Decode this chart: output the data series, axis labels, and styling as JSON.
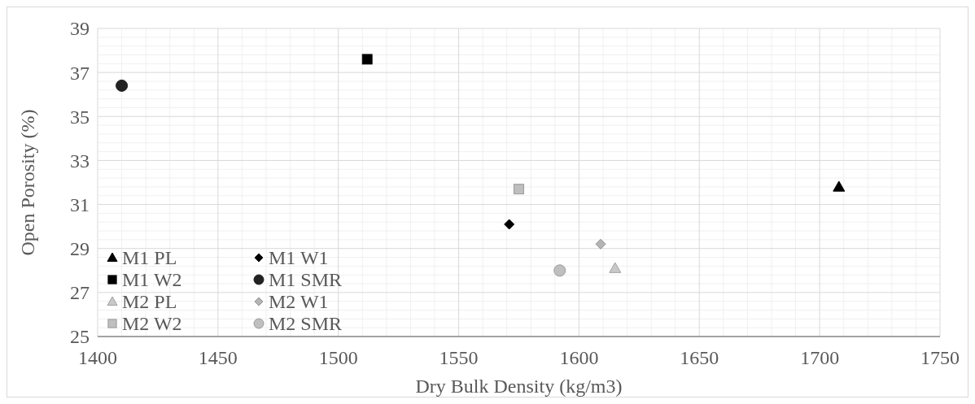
{
  "chart_data": {
    "type": "scatter",
    "xlabel": "Dry Bulk Density (kg/m3)",
    "ylabel": "Open Porosity (%)",
    "xlim": [
      1400,
      1750
    ],
    "xticks": [
      1400,
      1450,
      1500,
      1550,
      1600,
      1650,
      1700,
      1750
    ],
    "ylim": [
      25,
      39
    ],
    "yticks": [
      25,
      27,
      29,
      31,
      33,
      35,
      37,
      39
    ],
    "grid": true,
    "legend": "bottom left",
    "series": [
      {
        "name": "M1 PL",
        "color": "#000000",
        "marker": "triangle",
        "x": [
          1708
        ],
        "values": [
          31.8
        ]
      },
      {
        "name": "M1 W1",
        "color": "#000000",
        "marker": "diamond",
        "x": [
          1571
        ],
        "values": [
          30.1
        ]
      },
      {
        "name": "M1 W2",
        "color": "#000000",
        "marker": "square",
        "x": [
          1512
        ],
        "values": [
          37.6
        ]
      },
      {
        "name": "M1 SMR",
        "color": "#222222",
        "marker": "circle",
        "x": [
          1410
        ],
        "values": [
          36.4
        ]
      },
      {
        "name": "M2 PL",
        "color": "#c8c8c8",
        "marker": "triangle",
        "x": [
          1615
        ],
        "values": [
          28.1
        ]
      },
      {
        "name": "M2 W1",
        "color": "#b4b4b4",
        "marker": "diamond",
        "x": [
          1609
        ],
        "values": [
          29.2
        ]
      },
      {
        "name": "M2 W2",
        "color": "#bfbfbf",
        "marker": "square",
        "x": [
          1575
        ],
        "values": [
          31.7
        ]
      },
      {
        "name": "M2 SMR",
        "color": "#bfbfbf",
        "marker": "circle",
        "x": [
          1592
        ],
        "values": [
          28.0
        ]
      }
    ]
  }
}
